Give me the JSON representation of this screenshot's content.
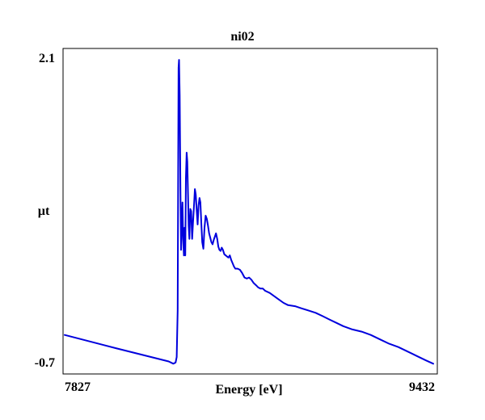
{
  "chart_data": {
    "type": "line",
    "title": "ni02",
    "xlabel": "Energy [eV]",
    "ylabel": "µt",
    "xlim": [
      7827,
      9432
    ],
    "ylim": [
      -0.7,
      2.1
    ],
    "x_tick_labels": [
      "7827",
      "9432"
    ],
    "y_tick_labels": [
      "2.1",
      "-0.7"
    ],
    "grid": false,
    "series": [
      {
        "color": "#0000dd",
        "x": [
          7827,
          8050,
          8280,
          8300,
          8310,
          8315,
          8319,
          8321,
          8323,
          8325,
          8328,
          8331,
          8334,
          8337,
          8340,
          8343,
          8346,
          8349,
          8352,
          8355,
          8358,
          8361,
          8364,
          8367,
          8370,
          8374,
          8378,
          8382,
          8386,
          8390,
          8394,
          8398,
          8402,
          8406,
          8410,
          8414,
          8418,
          8422,
          8426,
          8431,
          8436,
          8441,
          8446,
          8451,
          8456,
          8461,
          8466,
          8471,
          8476,
          8481,
          8486,
          8491,
          8496,
          8501,
          8506,
          8511,
          8516,
          8522,
          8528,
          8534,
          8540,
          8546,
          8552,
          8558,
          8564,
          8570,
          8580,
          8590,
          8600,
          8610,
          8620,
          8630,
          8640,
          8650,
          8660,
          8670,
          8680,
          8690,
          8700,
          8720,
          8740,
          8760,
          8780,
          8800,
          8830,
          8860,
          8890,
          8920,
          8950,
          8980,
          9010,
          9040,
          9080,
          9120,
          9160,
          9200,
          9240,
          9280,
          9320,
          9360,
          9400,
          9432
        ],
        "y": [
          -0.42,
          -0.54,
          -0.66,
          -0.68,
          -0.67,
          -0.62,
          -0.2,
          1.0,
          2.0,
          2.07,
          1.75,
          0.9,
          0.35,
          0.58,
          0.78,
          0.45,
          0.3,
          0.55,
          0.3,
          1.0,
          1.23,
          1.15,
          0.85,
          0.57,
          0.45,
          0.72,
          0.7,
          0.45,
          0.6,
          0.75,
          0.9,
          0.85,
          0.7,
          0.58,
          0.75,
          0.82,
          0.78,
          0.6,
          0.42,
          0.36,
          0.55,
          0.66,
          0.63,
          0.57,
          0.5,
          0.46,
          0.42,
          0.4,
          0.44,
          0.47,
          0.5,
          0.45,
          0.38,
          0.35,
          0.34,
          0.37,
          0.35,
          0.31,
          0.3,
          0.29,
          0.28,
          0.3,
          0.26,
          0.23,
          0.2,
          0.18,
          0.18,
          0.17,
          0.14,
          0.1,
          0.09,
          0.1,
          0.08,
          0.05,
          0.03,
          0.01,
          0.0,
          0.0,
          -0.02,
          -0.04,
          -0.07,
          -0.1,
          -0.13,
          -0.15,
          -0.16,
          -0.18,
          -0.2,
          -0.22,
          -0.25,
          -0.28,
          -0.31,
          -0.34,
          -0.37,
          -0.39,
          -0.42,
          -0.46,
          -0.5,
          -0.53,
          -0.57,
          -0.61,
          -0.65,
          -0.68
        ]
      }
    ]
  }
}
